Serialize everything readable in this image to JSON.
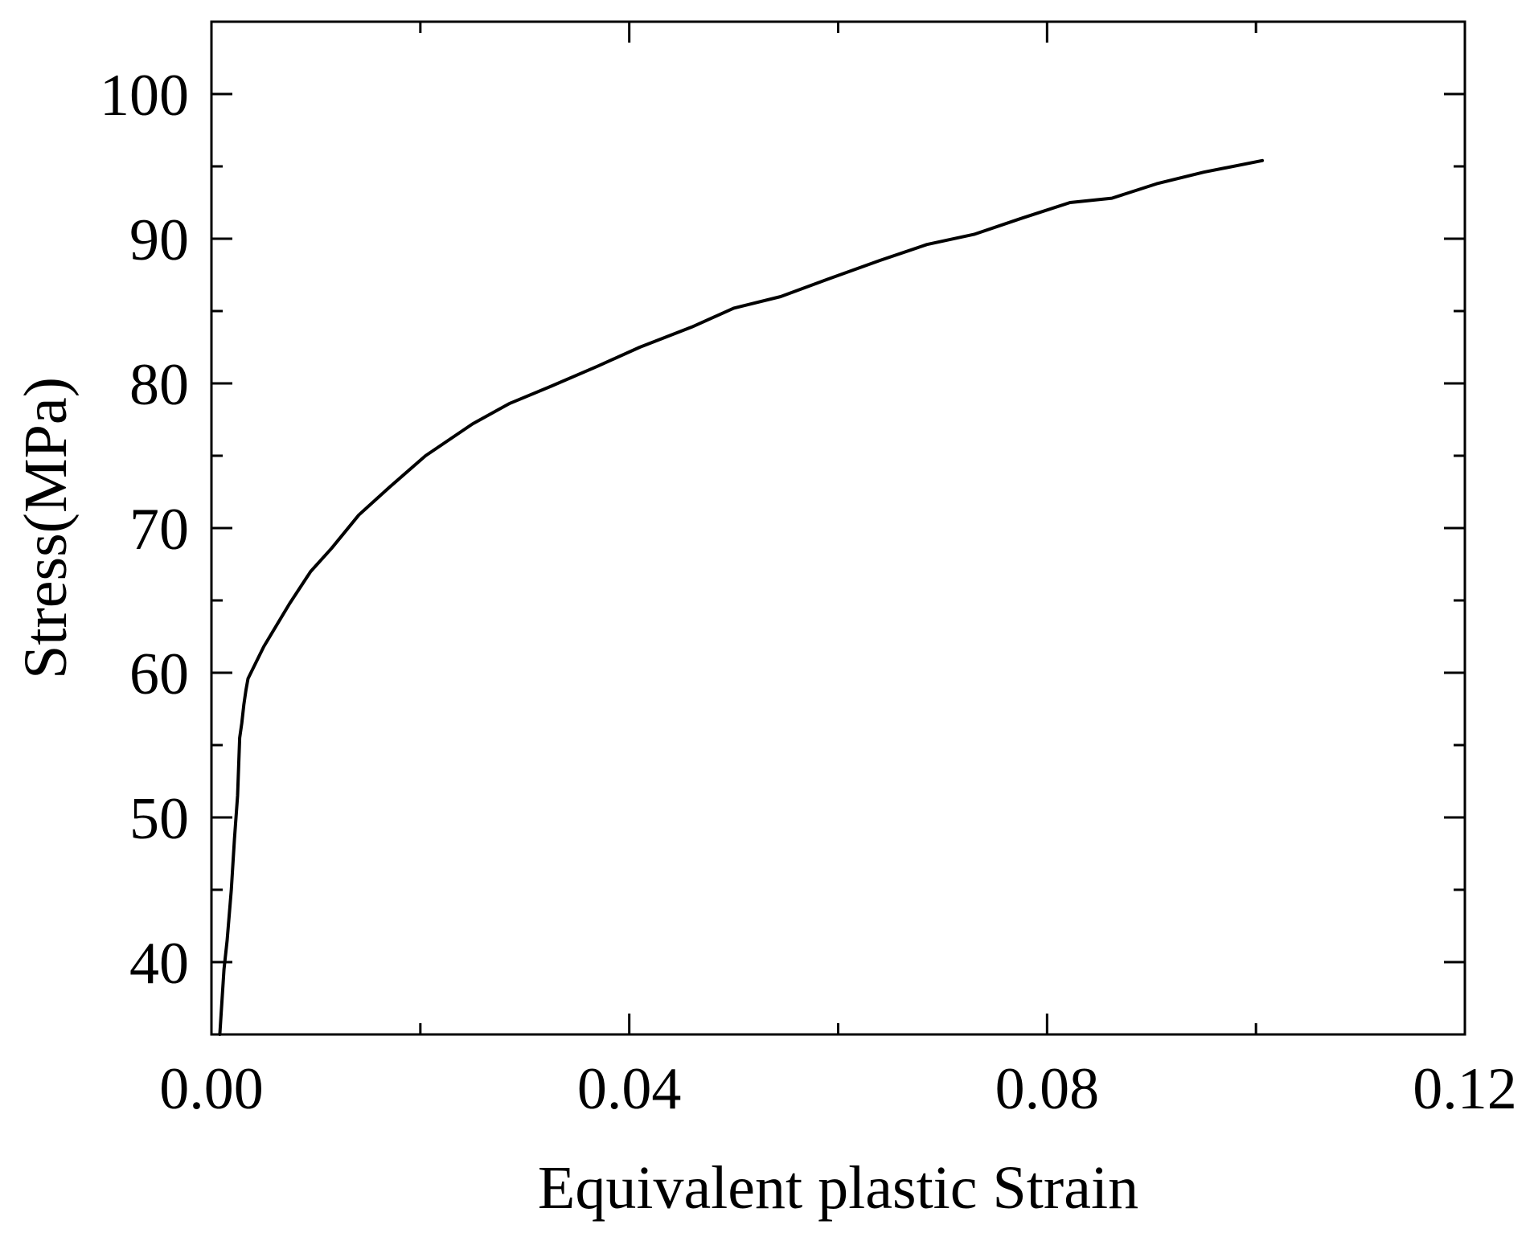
{
  "chart_data": {
    "type": "line",
    "title": "",
    "xlabel": "Equivalent plastic Strain",
    "ylabel": "Stress(MPa)",
    "xlim": [
      0.0,
      0.12
    ],
    "ylim": [
      35,
      105
    ],
    "x_major_ticks": [
      0.0,
      0.04,
      0.08,
      0.12
    ],
    "x_tick_labels": [
      "0.00",
      "0.04",
      "0.08",
      "0.12"
    ],
    "x_minor_ticks": [
      0.02,
      0.06,
      0.1
    ],
    "y_major_ticks": [
      40,
      50,
      60,
      70,
      80,
      90,
      100
    ],
    "y_tick_labels": [
      "40",
      "50",
      "60",
      "70",
      "80",
      "90",
      "100"
    ],
    "y_minor_ticks": [
      35,
      45,
      55,
      65,
      75,
      85,
      95,
      105
    ],
    "grid": false,
    "line_color": "#000000",
    "series": [
      {
        "x": [
          0.0008,
          0.0012,
          0.0015,
          0.0019,
          0.0022,
          0.0025,
          0.0027,
          0.0029,
          0.0031,
          0.0033,
          0.0035,
          0.005,
          0.0075,
          0.0095,
          0.0115,
          0.0141,
          0.017,
          0.0205,
          0.025,
          0.0285,
          0.0325,
          0.037,
          0.041,
          0.046,
          0.05,
          0.0545,
          0.059,
          0.064,
          0.0685,
          0.073,
          0.0775,
          0.0822,
          0.0862,
          0.0905,
          0.095,
          0.1006
        ],
        "y": [
          35.0,
          39.5,
          41.5,
          45.0,
          48.5,
          51.5,
          55.5,
          56.5,
          57.8,
          58.8,
          59.6,
          61.8,
          64.8,
          67.0,
          68.6,
          70.9,
          72.8,
          75.0,
          77.2,
          78.6,
          79.8,
          81.2,
          82.5,
          83.9,
          85.2,
          86.0,
          87.2,
          88.5,
          89.6,
          90.3,
          91.4,
          92.5,
          92.8,
          93.8,
          94.6,
          95.4
        ]
      }
    ]
  }
}
